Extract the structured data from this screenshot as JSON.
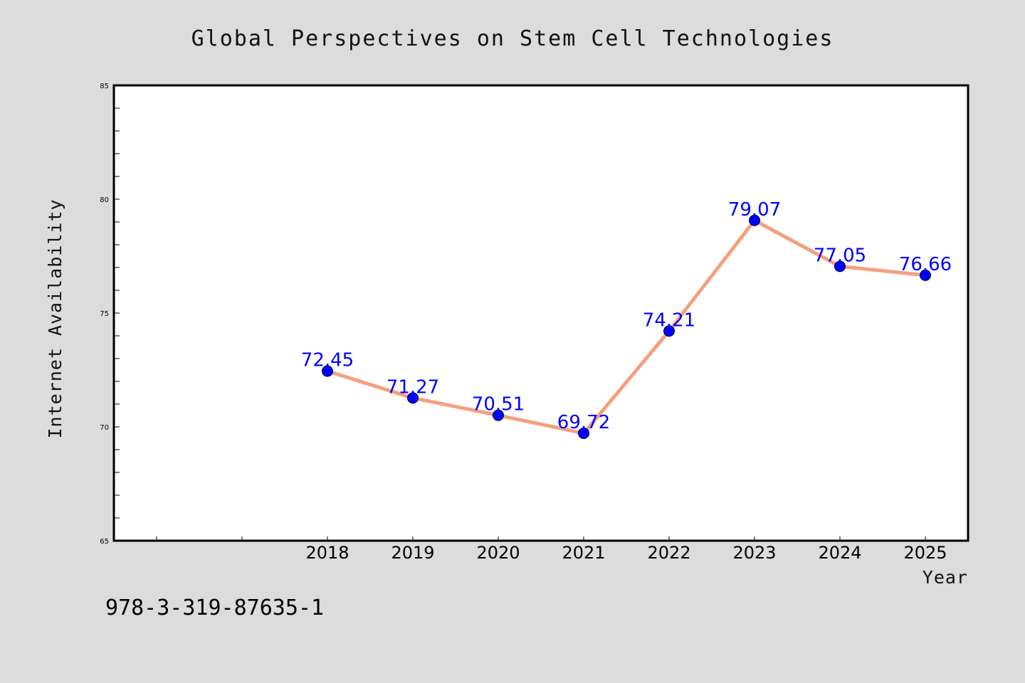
{
  "chart_data": {
    "type": "line",
    "title": "Global Perspectives on Stem Cell Technologies",
    "xlabel": "Year",
    "ylabel": "Internet Availability",
    "categories": [
      "2018",
      "2019",
      "2020",
      "2021",
      "2022",
      "2023",
      "2024",
      "2025"
    ],
    "values": [
      72.45,
      71.27,
      70.51,
      69.72,
      74.21,
      79.07,
      77.05,
      76.66
    ],
    "data_labels": [
      "72.45",
      "71.27",
      "70.51",
      "69.72",
      "74.21",
      "79.07",
      "77.05",
      "76.66"
    ],
    "ylim": [
      65,
      85
    ],
    "yticks": [
      "65",
      "70",
      "75",
      "80",
      "85"
    ],
    "xlim_category_offset": 2,
    "grid": false,
    "line_color": "#f4a07f",
    "marker_color": "#0000ff",
    "label_color": "#0000ff",
    "background_color": "#dcdcdc",
    "plot_background_color": "#ffffff"
  },
  "footer": {
    "identifier": "978-3-319-87635-1"
  }
}
